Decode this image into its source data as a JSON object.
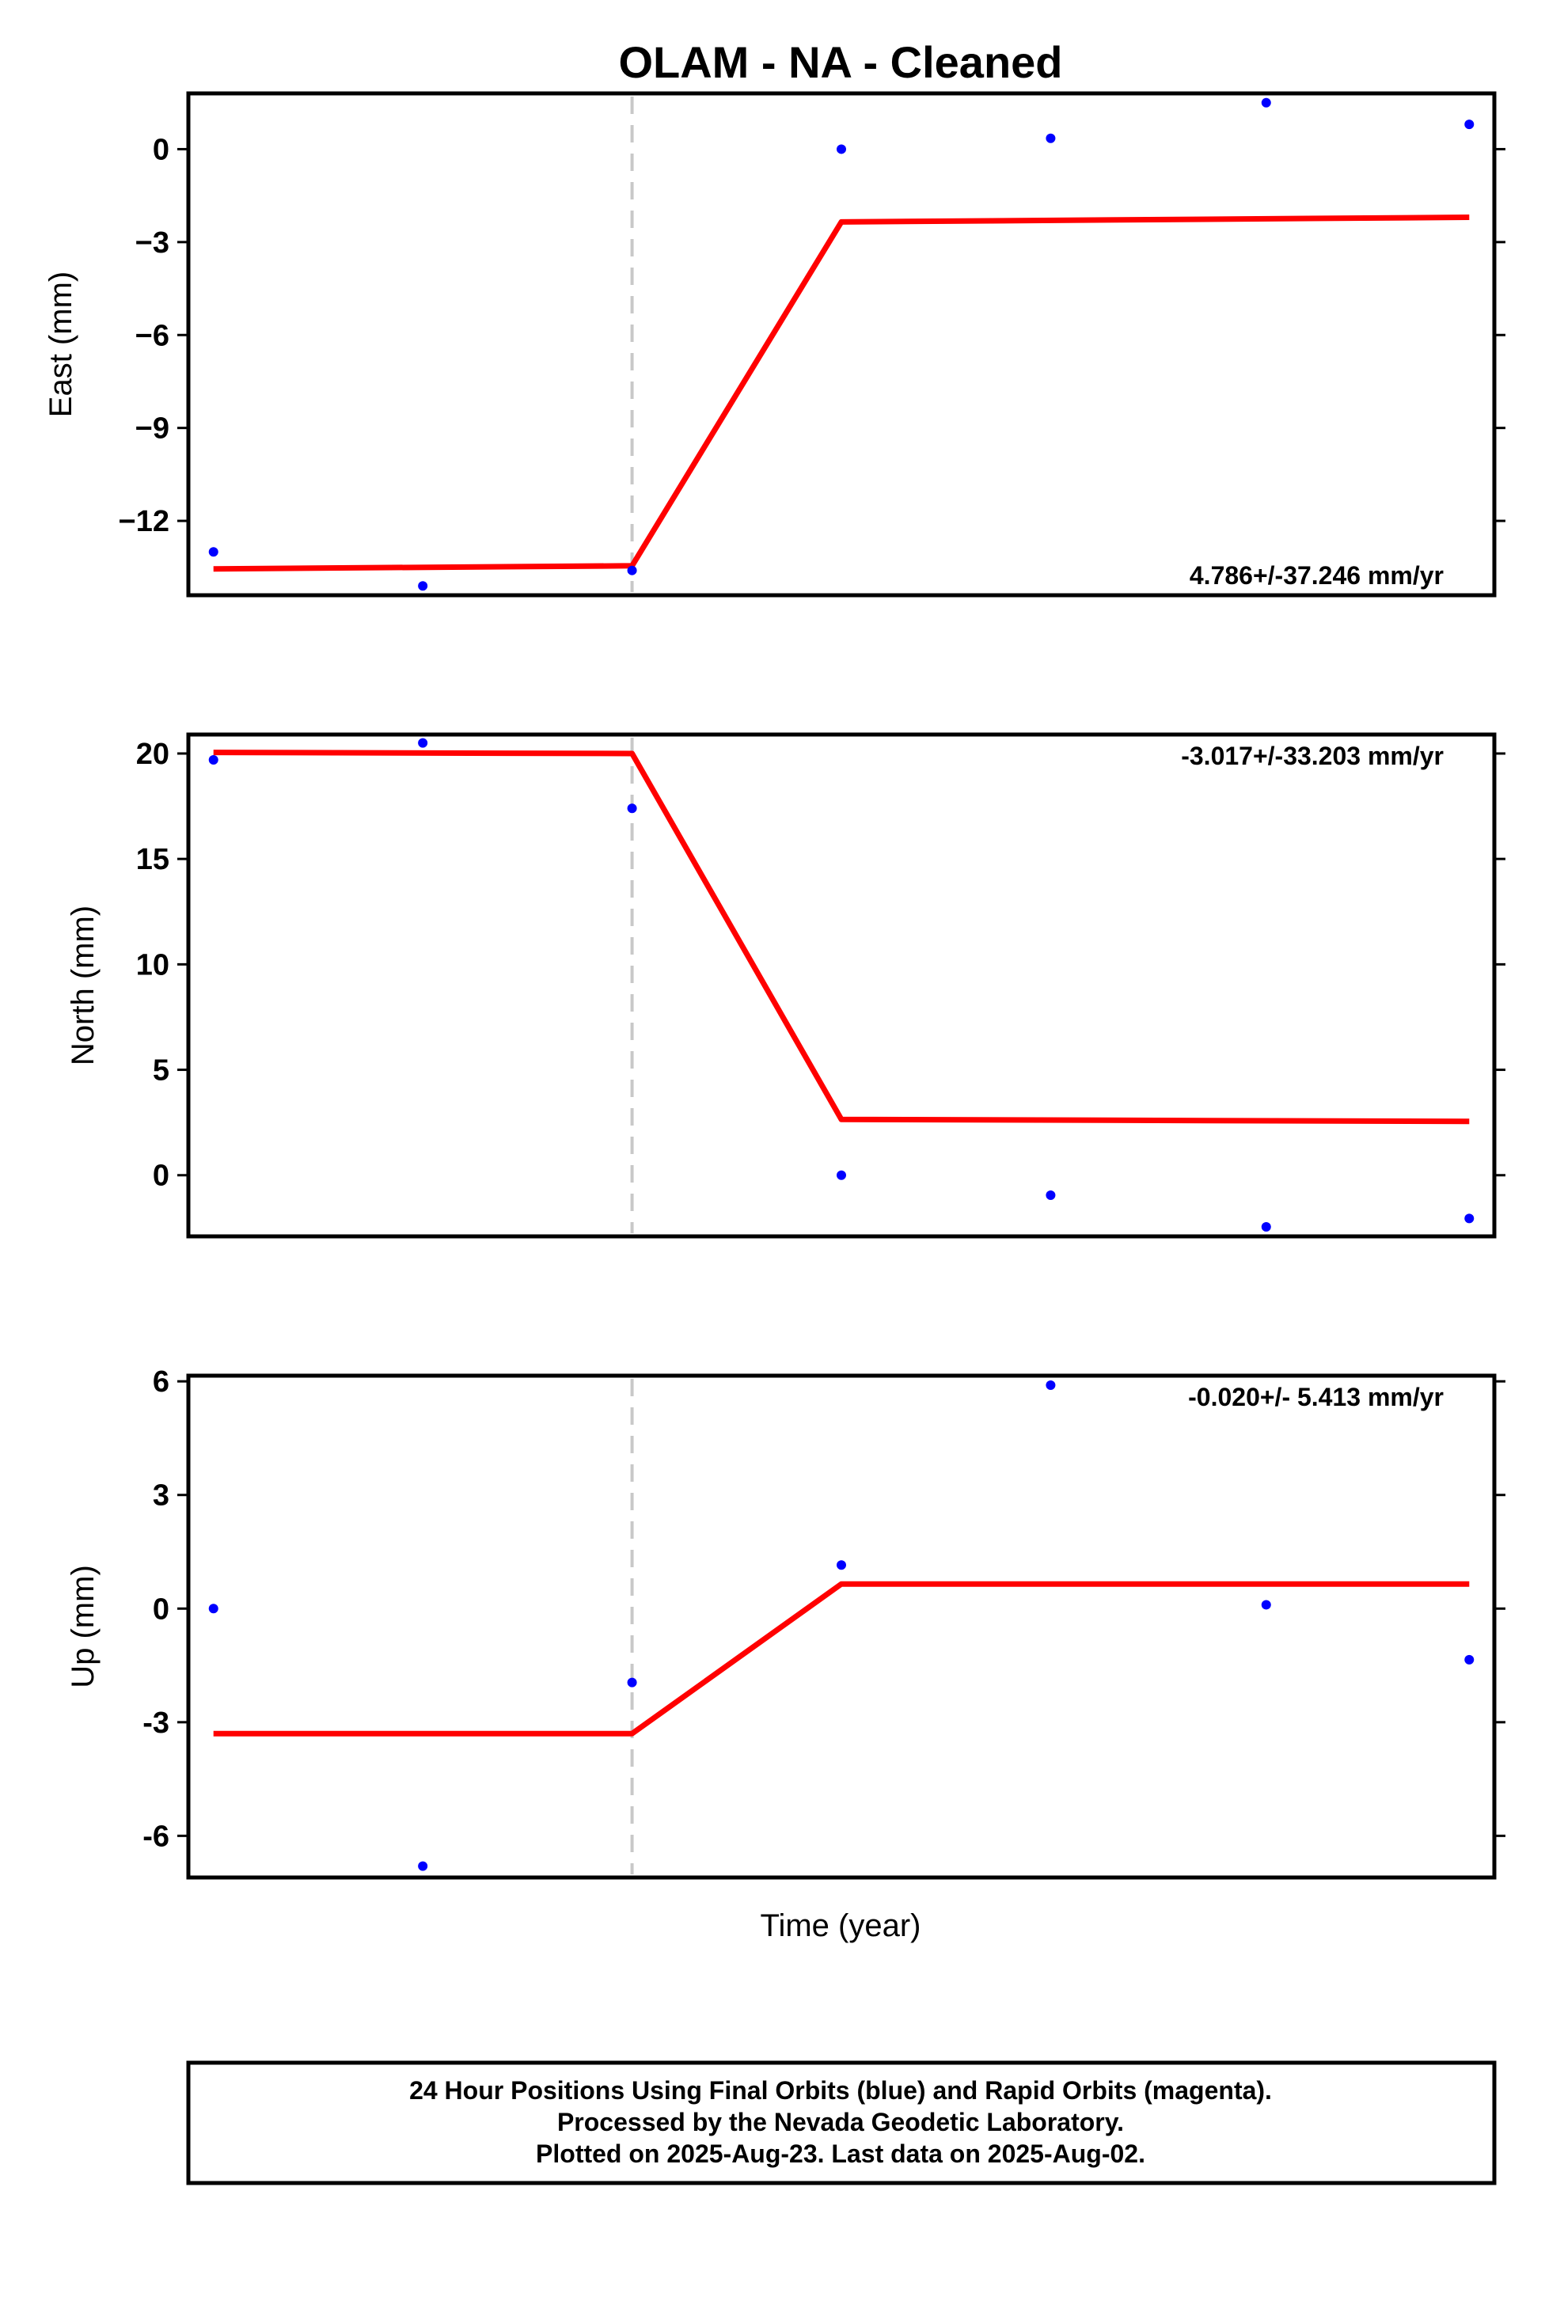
{
  "chart_data": {
    "type": "scatter",
    "title": "OLAM  - NA - Cleaned",
    "xlabel": "Time (year)",
    "marker_color": "#0000ff",
    "fit_color": "#ff0000",
    "break_color": "#c8c8c8",
    "break_x": 2,
    "xlim": [
      -0.12,
      6.12
    ],
    "panels": [
      {
        "name": "east",
        "ylabel": "East (mm)",
        "ylim": [
          -14.4,
          1.8
        ],
        "yticks": [
          0,
          -3,
          -6,
          -9,
          -12
        ],
        "ytick_labels": [
          "0",
          "−3",
          "−6",
          "−9",
          "−12"
        ],
        "rate": "4.786+/-37.246 mm/yr",
        "rate_position": "bottom-right",
        "points": [
          {
            "x": 0,
            "y": -13.0
          },
          {
            "x": 1,
            "y": -14.1
          },
          {
            "x": 2,
            "y": -13.6
          },
          {
            "x": 3,
            "y": 0.0
          },
          {
            "x": 4,
            "y": 0.35
          },
          {
            "x": 5.03,
            "y": 1.5
          },
          {
            "x": 6,
            "y": 0.8
          }
        ],
        "fit": [
          {
            "x": 0,
            "y": -13.55
          },
          {
            "x": 2,
            "y": -13.45
          },
          {
            "x": 3,
            "y": -2.35
          },
          {
            "x": 6,
            "y": -2.2
          }
        ]
      },
      {
        "name": "north",
        "ylabel": "North (mm)",
        "ylim": [
          -2.9,
          20.9
        ],
        "yticks": [
          20,
          15,
          10,
          5,
          0
        ],
        "ytick_labels": [
          "20",
          "15",
          "10",
          "5",
          "0"
        ],
        "rate": "-3.017+/-33.203 mm/yr",
        "rate_position": "top-right",
        "points": [
          {
            "x": 0,
            "y": 19.7
          },
          {
            "x": 1,
            "y": 20.5
          },
          {
            "x": 2,
            "y": 17.4
          },
          {
            "x": 3,
            "y": 0.0
          },
          {
            "x": 4,
            "y": -0.95
          },
          {
            "x": 5.03,
            "y": -2.45
          },
          {
            "x": 6,
            "y": -2.05
          }
        ],
        "fit": [
          {
            "x": 0,
            "y": 20.05
          },
          {
            "x": 2,
            "y": 20.0
          },
          {
            "x": 3,
            "y": 2.65
          },
          {
            "x": 6,
            "y": 2.55
          }
        ]
      },
      {
        "name": "up",
        "ylabel": "Up (mm)",
        "ylim": [
          -7.1,
          6.15
        ],
        "yticks": [
          6,
          3,
          0,
          -3,
          -6
        ],
        "ytick_labels": [
          "6",
          "3",
          "0",
          "-3",
          "-6"
        ],
        "rate": "-0.020+/- 5.413 mm/yr",
        "rate_position": "top-right",
        "points": [
          {
            "x": 0,
            "y": 0.0
          },
          {
            "x": 1,
            "y": -6.8
          },
          {
            "x": 2,
            "y": -1.95
          },
          {
            "x": 3,
            "y": 1.15
          },
          {
            "x": 4,
            "y": 5.9
          },
          {
            "x": 5.03,
            "y": 0.1
          },
          {
            "x": 6,
            "y": -1.35
          }
        ],
        "fit": [
          {
            "x": 0,
            "y": -3.3
          },
          {
            "x": 2,
            "y": -3.3
          },
          {
            "x": 3,
            "y": 0.65
          },
          {
            "x": 6,
            "y": 0.65
          }
        ]
      }
    ]
  },
  "footer": {
    "line1": "24 Hour Positions Using Final Orbits (blue) and Rapid Orbits (magenta).",
    "line2": "Processed by the Nevada Geodetic Laboratory.",
    "line3": "Plotted on 2025-Aug-23. Last data on 2025-Aug-02."
  }
}
